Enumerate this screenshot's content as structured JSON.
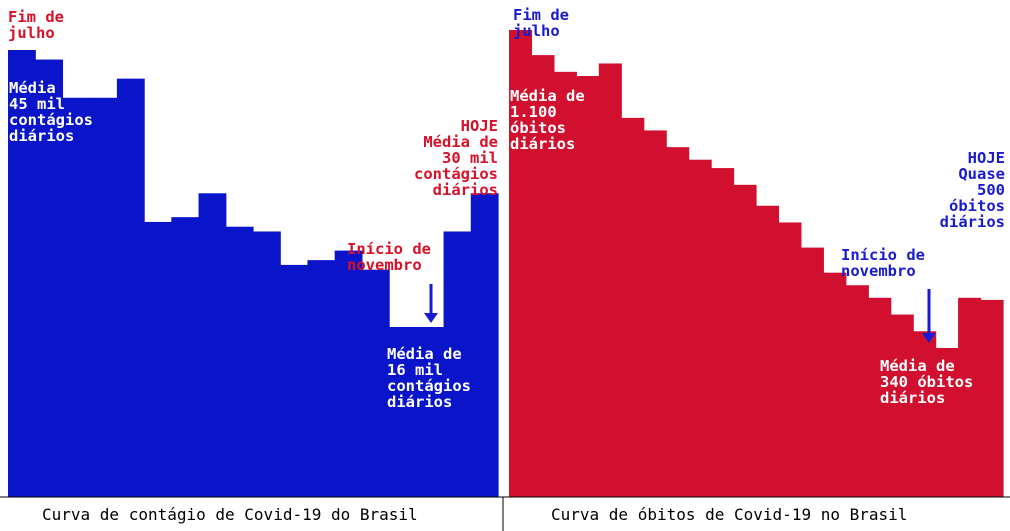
{
  "chart_data": [
    {
      "type": "area",
      "caption": "Curva de contágio de Covid-19 do Brasil",
      "color": "#0a14c8",
      "period_start": "Fim de julho",
      "period_end": "HOJE",
      "values": [
        45000,
        44000,
        40000,
        40000,
        42000,
        27000,
        27500,
        30000,
        26500,
        26000,
        22500,
        23000,
        24000,
        22000,
        16000,
        16000,
        26000,
        30000
      ],
      "annotations": {
        "start_period": "Fim de\njulho",
        "start_value": "Média de\n45 mil\ncontágios\ndiários",
        "today_value": "HOJE\nMédia de\n30 mil\ncontágios\ndiários",
        "marker_label": "Início de\nnovembro",
        "marker_value": "Média de\n16 mil\ncontágios\ndiários"
      }
    },
    {
      "type": "area",
      "caption": "Curva de óbitos de Covid-19 no Brasil",
      "color": "#d0102e",
      "period_start": "Fim de julho",
      "period_end": "HOJE",
      "values": [
        1100,
        1040,
        1000,
        990,
        1020,
        890,
        860,
        820,
        790,
        770,
        730,
        680,
        640,
        580,
        520,
        490,
        460,
        420,
        380,
        340,
        460,
        455
      ],
      "annotations": {
        "start_period": "Fim de\njulho",
        "start_value": "Média de\n1.100\nóbitos\ndiários",
        "today_value": "HOJE\nQuase\n500\nóbitos\ndiários",
        "marker_label": "Início de\nnovembro",
        "marker_value": "Média de\n340 óbitos\ndiários"
      }
    }
  ],
  "colors": {
    "arrow": "#1a1ad0",
    "label_red": "#d8102a",
    "label_blue": "#1a1ad0"
  }
}
